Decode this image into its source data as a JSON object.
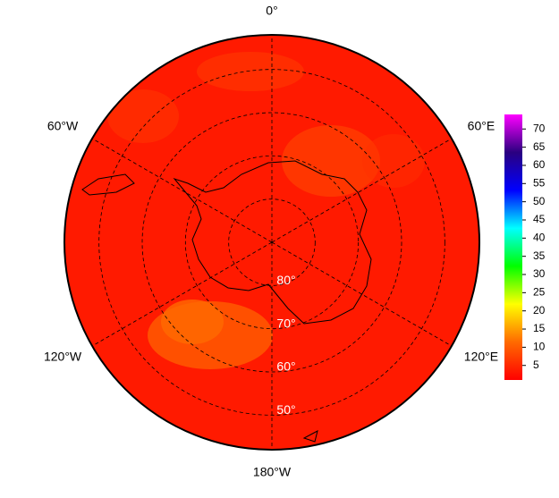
{
  "map": {
    "longitude_ticks": [
      {
        "value": 0,
        "label": "0°"
      },
      {
        "value": 60,
        "label": "60°E"
      },
      {
        "value": 120,
        "label": "120°E"
      },
      {
        "value": 180,
        "label": "180°W"
      },
      {
        "value": -120,
        "label": "120°W"
      },
      {
        "value": -60,
        "label": "60°W"
      }
    ],
    "latitude_ticks": [
      {
        "value": 80,
        "label": "80°"
      },
      {
        "value": 70,
        "label": "70°"
      },
      {
        "value": 60,
        "label": "60°"
      },
      {
        "value": 50,
        "label": "50°"
      }
    ],
    "latitude_limit": 42,
    "colorbar": {
      "range": [
        1,
        74
      ],
      "ticks": [
        5,
        10,
        15,
        20,
        25,
        30,
        35,
        40,
        45,
        50,
        55,
        60,
        65,
        70
      ],
      "colors": [
        "#ff0000",
        "#ff6a00",
        "#ffff00",
        "#00ff00",
        "#00ffff",
        "#0000ff",
        "#2a0080",
        "#ff00ff"
      ]
    }
  }
}
